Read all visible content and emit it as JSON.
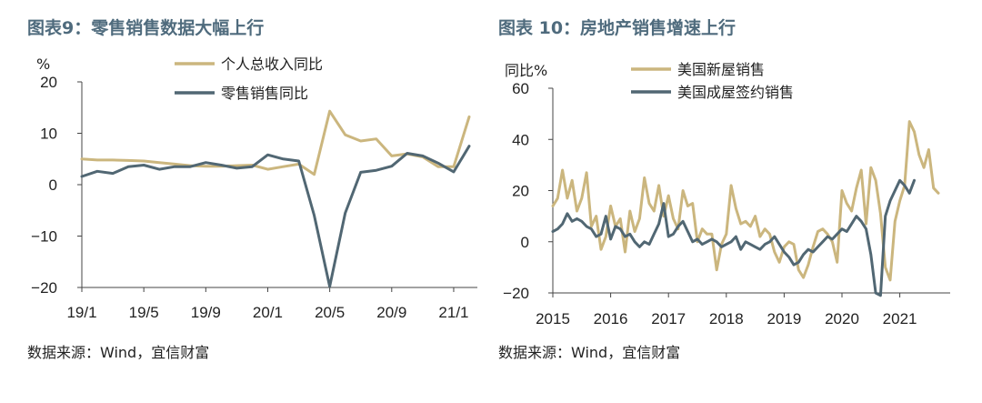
{
  "colors": {
    "gold": "#cbb67e",
    "slate": "#516773",
    "title": "#4f6b7d"
  },
  "chart_data": [
    {
      "type": "line",
      "title": "图表9：零售销售数据大幅上行",
      "ylabel": "%",
      "ylim": [
        -20,
        20
      ],
      "yticks": [
        "20",
        "10",
        "0",
        "−10",
        "−20"
      ],
      "xticks": [
        "19/1",
        "19/5",
        "19/9",
        "20/1",
        "20/5",
        "20/9",
        "21/1"
      ],
      "x_start": "2019-01",
      "source": "数据来源：Wind，宜信财富",
      "series": [
        {
          "name": "个人总收入同比",
          "color": "#cbb67e",
          "values": [
            5.0,
            4.8,
            4.8,
            4.7,
            4.6,
            4.3,
            4.0,
            3.7,
            3.6,
            3.6,
            3.7,
            3.8,
            3.0,
            3.5,
            4.0,
            2.0,
            14.3,
            9.7,
            8.5,
            8.9,
            5.6,
            6.0,
            5.4,
            3.5,
            3.5,
            13.2
          ]
        },
        {
          "name": "零售销售同比",
          "color": "#516773",
          "values": [
            1.6,
            2.6,
            2.2,
            3.5,
            3.8,
            3.0,
            3.5,
            3.5,
            4.3,
            3.8,
            3.2,
            3.5,
            5.8,
            5.0,
            4.6,
            -6.0,
            -19.8,
            -5.5,
            2.4,
            2.8,
            3.6,
            6.1,
            5.6,
            4.2,
            2.5,
            7.5
          ]
        }
      ]
    },
    {
      "type": "line",
      "title": "图表 10：房地产销售增速上行",
      "ylabel": "同比%",
      "ylim": [
        -20,
        60
      ],
      "yticks": [
        "60",
        "40",
        "20",
        "0",
        "−20"
      ],
      "xticks": [
        "2015",
        "2016",
        "2017",
        "2018",
        "2019",
        "2020",
        "2021"
      ],
      "x_start": "2015-01",
      "source": "数据来源：Wind，宜信财富",
      "series": [
        {
          "name": "美国新屋销售",
          "color": "#cbb67e",
          "values": [
            14,
            17,
            28,
            17,
            24,
            12,
            17,
            27,
            6,
            10,
            -3,
            2,
            14,
            6,
            9,
            -4,
            12,
            4,
            9,
            25,
            15,
            12,
            22,
            10,
            18,
            9,
            5,
            20,
            14,
            15,
            0,
            5,
            3,
            3,
            -11,
            -1,
            3,
            22,
            13,
            7,
            8,
            6,
            10,
            2,
            5,
            3,
            -4,
            -8,
            -2,
            0,
            -1,
            -11,
            -14,
            -9,
            -2,
            4,
            5,
            3,
            0,
            -8,
            20,
            15,
            12,
            21,
            28,
            7,
            29,
            24,
            11,
            -10,
            -15,
            8,
            16,
            22,
            47,
            43,
            34,
            29,
            36,
            21,
            19
          ]
        },
        {
          "name": "美国成屋签约销售",
          "color": "#516773",
          "values": [
            4,
            5,
            7,
            11,
            8,
            9,
            8,
            6,
            5,
            2,
            3,
            10,
            1,
            6,
            5,
            2,
            3,
            0,
            -2,
            0,
            -1,
            3,
            7,
            15,
            2,
            3,
            6,
            8,
            4,
            0,
            1,
            -1,
            0,
            1,
            0,
            -2,
            -1,
            0,
            2,
            -3,
            0,
            -1,
            -2,
            -3,
            -1,
            0,
            2,
            -1,
            -4,
            -6,
            -9,
            -8,
            -5,
            -3,
            -4,
            -2,
            0,
            2,
            1,
            3,
            5,
            4,
            7,
            10,
            8,
            5,
            -5,
            -20,
            -21,
            10,
            16,
            20,
            24,
            22,
            19,
            24
          ]
        }
      ]
    }
  ]
}
